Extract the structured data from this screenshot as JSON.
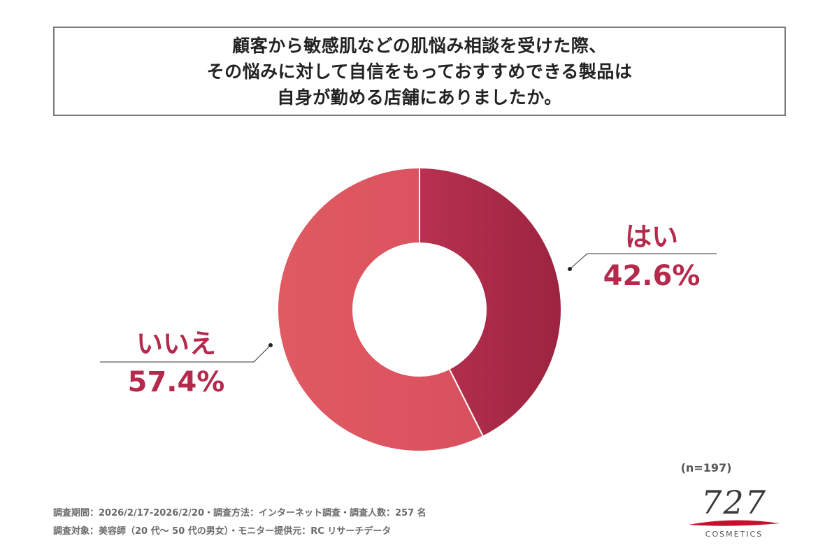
{
  "title": {
    "lines": [
      "顧客から敏感肌などの肌悩み相談を受けた際、",
      "その悩みに対して自信をもっておすすめできる製品は",
      "自身が勤める店舗にありましたか。"
    ]
  },
  "chart_data": {
    "type": "pie",
    "donut": true,
    "categories": [
      "はい",
      "いいえ"
    ],
    "values": [
      42.6,
      57.4
    ],
    "value_labels": [
      "42.6%",
      "57.4%"
    ],
    "colors": [
      "#a62a45",
      "#dc525f"
    ],
    "label_color": "#b52a4c",
    "start": "top, clockwise",
    "title": "顧客から敏感肌などの肌悩み相談を受けた際、その悩みに対して自信をもっておすすめできる製品は自身が勤める店舗にありましたか。"
  },
  "sample_size": "(n=197)",
  "footer": {
    "line1": "調査期間：2026/2/17-2026/2/20・調査方法：インターネット調査・調査人数：257 名",
    "line2": "調査対象：美容師（20 代～ 50 代の男女）・モニター提供元：RC リサーチデータ"
  },
  "logo": {
    "number": "727",
    "subtitle": "COSMETICS",
    "swoosh_color": "#c8102e"
  }
}
